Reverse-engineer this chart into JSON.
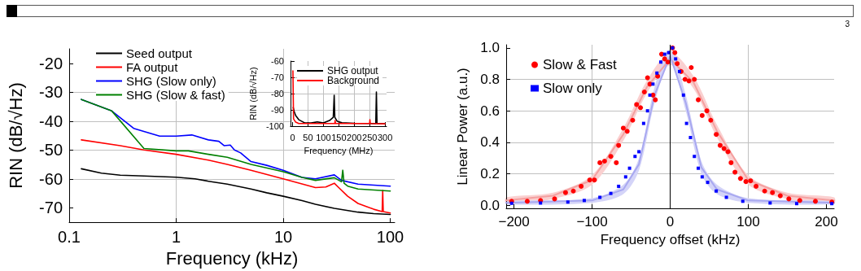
{
  "chart_data": [
    {
      "type": "other",
      "annotations": [
        "3"
      ]
    },
    {
      "type": "line",
      "xlabel": "Frequency (kHz)",
      "ylabel": "RIN (dB/√Hz)",
      "log": "x",
      "xlim": [
        0.1,
        110
      ],
      "xticks": [
        0.1,
        1,
        10,
        100
      ],
      "ylim": [
        -75,
        -15
      ],
      "yticks": [
        -70,
        -60,
        -50,
        -40,
        -30,
        -20
      ],
      "grid": true,
      "legend": "top left",
      "marker": "none",
      "line_style": "solid",
      "series": [
        {
          "name": "Seed output",
          "color": "#000000",
          "x": [
            0.13,
            0.2,
            0.3,
            0.5,
            1,
            1.5,
            2,
            3,
            5,
            7,
            10,
            15,
            20,
            30,
            50,
            70,
            100
          ],
          "values": [
            -56.5,
            -58,
            -58.7,
            -59,
            -59.4,
            -60,
            -60.8,
            -61.8,
            -63.5,
            -64.8,
            -66,
            -67.5,
            -68.8,
            -70.2,
            -71.5,
            -72,
            -72.3
          ]
        },
        {
          "name": "FA output",
          "color": "#ff0000",
          "x": [
            0.13,
            0.3,
            0.5,
            1,
            2,
            3,
            5,
            10,
            20,
            25,
            30,
            33,
            40,
            50,
            70,
            84,
            85,
            86,
            100
          ],
          "values": [
            -46.5,
            -48.5,
            -50,
            -51.5,
            -53.5,
            -55,
            -57,
            -60,
            -63,
            -62.8,
            -61.5,
            -63,
            -66,
            -68.5,
            -70.5,
            -71.3,
            -64,
            -71.3,
            -71.8
          ]
        },
        {
          "name": "SHG (Slow only)",
          "color": "#0000ff",
          "x": [
            0.13,
            0.25,
            0.4,
            0.7,
            1,
            1.4,
            2,
            2.5,
            2.8,
            3.2,
            3.5,
            4,
            5,
            7,
            10,
            15,
            20,
            30,
            35,
            50,
            100
          ],
          "values": [
            -32.5,
            -36.5,
            -42.5,
            -45.2,
            -45.2,
            -44.8,
            -46.5,
            -47,
            -48.5,
            -48.3,
            -50,
            -51,
            -54,
            -55.3,
            -57,
            -59.5,
            -60,
            -58.6,
            -60.5,
            -61.8,
            -62.5
          ]
        },
        {
          "name": "SHG (Slow & fast)",
          "color": "#008000",
          "x": [
            0.13,
            0.25,
            0.5,
            1,
            1.3,
            2,
            3,
            5,
            10,
            15,
            20,
            30,
            35,
            36,
            37,
            40,
            50,
            100
          ],
          "values": [
            -32.5,
            -36.5,
            -49.5,
            -50.3,
            -50.3,
            -51.5,
            -52.5,
            -55,
            -57.5,
            -59.5,
            -60.5,
            -59.6,
            -61,
            -57,
            -61.5,
            -62.5,
            -63.5,
            -64.2
          ]
        }
      ]
    },
    {
      "type": "line",
      "xlabel": "Frequency (MHz)",
      "ylabel": "RIN (dB/√Hz)",
      "xlim": [
        -7,
        305
      ],
      "xticks": [
        0,
        50,
        100,
        150,
        200,
        250,
        300
      ],
      "ylim": [
        -100,
        -60
      ],
      "yticks": [
        -100,
        -90,
        -80,
        -70,
        -60
      ],
      "grid": true,
      "legend": "top left",
      "marker": "none",
      "line_style": "solid",
      "series": [
        {
          "name": "SHG output",
          "color": "#000000",
          "x": [
            2,
            5,
            10,
            20,
            40,
            60,
            80,
            100,
            120,
            132,
            135,
            137,
            145,
            160,
            200,
            270,
            272,
            274,
            300
          ],
          "values": [
            -88.5,
            -91,
            -93.5,
            -96,
            -98,
            -98,
            -97.3,
            -98,
            -96.5,
            -94.5,
            -81,
            -94.5,
            -97,
            -97.8,
            -98.2,
            -98.3,
            -79,
            -98.3,
            -98.3
          ]
        },
        {
          "name": "Background",
          "color": "#ff0000",
          "x": [
            1,
            3,
            10,
            20,
            137,
            138,
            139,
            250,
            251,
            252,
            300
          ],
          "values": [
            -66,
            -95.5,
            -97.5,
            -98.3,
            -98.3,
            -96.5,
            -98.3,
            -98.3,
            -96,
            -98.3,
            -98.5
          ]
        }
      ]
    },
    {
      "type": "scatter",
      "xlabel": "Frequency offset (kHz)",
      "ylabel": "Linear Power (a.u.)",
      "xlim": [
        -210,
        210
      ],
      "xticks": [
        {
          "value": -200,
          "label": "−200"
        },
        {
          "value": -100,
          "label": "−100"
        },
        0,
        100,
        200
      ],
      "ylim": [
        -0.02,
        1.02
      ],
      "yticks": [
        {
          "value": 0,
          "label": "0.0"
        },
        0.2,
        0.4,
        0.6,
        0.8,
        {
          "value": 1,
          "label": "1.0"
        }
      ],
      "grid": true,
      "legend": "top left",
      "ref_lines": [
        {
          "axis": "x",
          "value": 0,
          "color": "#000000"
        }
      ],
      "series": [
        {
          "type": "line",
          "color": "#f4a0a0",
          "marker": "none",
          "x": [
            -210,
            -150,
            -100,
            -60,
            -30,
            0,
            30,
            60,
            100,
            150,
            210
          ],
          "values": [
            0.03,
            0.06,
            0.16,
            0.45,
            0.75,
            0.93,
            0.78,
            0.47,
            0.16,
            0.06,
            0.03
          ],
          "lower": [
            0.01,
            0.04,
            0.13,
            0.41,
            0.71,
            0.89,
            0.74,
            0.43,
            0.13,
            0.04,
            0.01
          ],
          "upper": [
            0.05,
            0.08,
            0.19,
            0.49,
            0.79,
            0.97,
            0.82,
            0.51,
            0.19,
            0.08,
            0.05
          ]
        },
        {
          "type": "line",
          "color": "#a8a8f0",
          "marker": "none",
          "x": [
            -210,
            -100,
            -60,
            -40,
            -20,
            0,
            20,
            40,
            60,
            100,
            210
          ],
          "values": [
            0.015,
            0.03,
            0.1,
            0.26,
            0.7,
            0.95,
            0.65,
            0.24,
            0.1,
            0.03,
            0.015
          ],
          "lower": [
            0.005,
            0.015,
            0.07,
            0.22,
            0.65,
            0.91,
            0.6,
            0.2,
            0.07,
            0.015,
            0.005
          ],
          "upper": [
            0.025,
            0.045,
            0.13,
            0.3,
            0.75,
            0.99,
            0.7,
            0.28,
            0.13,
            0.045,
            0.025
          ]
        },
        {
          "name": "Slow & Fast",
          "color": "#ff0000",
          "marker": "circle",
          "x": [
            -203,
            -183,
            -166,
            -148,
            -134,
            -124,
            -114,
            -103,
            -97,
            -90,
            -84,
            -76,
            -69,
            -66,
            -60,
            -55,
            -48,
            -43,
            -38,
            -33,
            -29,
            -26,
            -22,
            -19,
            -16,
            -11,
            -7,
            -3,
            3,
            6,
            9,
            14,
            19,
            24,
            27,
            31,
            36,
            41,
            47,
            52,
            59,
            64,
            69,
            74,
            78,
            83,
            90,
            97,
            103,
            110,
            121,
            131,
            141,
            152,
            166,
            186,
            207
          ],
          "values": [
            0.025,
            0.025,
            0.03,
            0.04,
            0.08,
            0.09,
            0.12,
            0.16,
            0.16,
            0.27,
            0.28,
            0.31,
            0.27,
            0.38,
            0.49,
            0.47,
            0.54,
            0.64,
            0.62,
            0.72,
            0.81,
            0.77,
            0.7,
            0.67,
            0.82,
            0.96,
            0.93,
            0.91,
            1.0,
            0.97,
            0.9,
            0.85,
            0.8,
            0.79,
            0.875,
            0.8,
            0.67,
            0.57,
            0.6,
            0.54,
            0.45,
            0.38,
            0.36,
            0.34,
            0.27,
            0.21,
            0.17,
            0.15,
            0.155,
            0.12,
            0.09,
            0.08,
            0.06,
            0.04,
            0.03,
            0.025,
            0.02
          ]
        },
        {
          "name": "Slow only",
          "color": "#0000ff",
          "marker": "square",
          "x": [
            -203,
            -166,
            -131,
            -110,
            -90,
            -76,
            -66,
            -57,
            -52,
            -45,
            -40,
            -34,
            -29,
            -26,
            -22,
            -17,
            -12,
            -7,
            -2,
            3,
            7,
            12,
            17,
            21,
            26,
            31,
            36,
            41,
            48,
            59,
            72,
            93,
            128,
            162,
            207
          ],
          "values": [
            0.012,
            0.014,
            0.02,
            0.03,
            0.05,
            0.075,
            0.12,
            0.18,
            0.235,
            0.31,
            0.34,
            0.52,
            0.6,
            0.7,
            0.77,
            0.84,
            0.91,
            0.96,
            0.97,
            1.0,
            0.93,
            0.85,
            0.7,
            0.52,
            0.43,
            0.31,
            0.235,
            0.18,
            0.145,
            0.09,
            0.05,
            0.025,
            0.014,
            0.01,
            0.01
          ]
        }
      ]
    }
  ]
}
